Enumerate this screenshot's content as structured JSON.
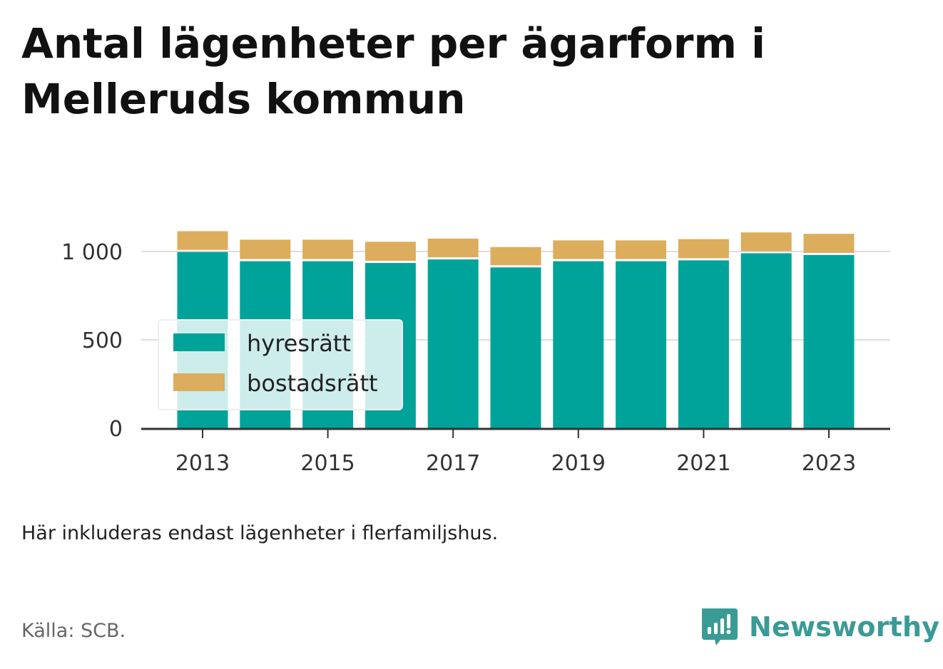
{
  "title_lines": [
    "Antal lägenheter per ägarform i",
    "Melleruds kommun"
  ],
  "note": "Här inkluderas endast lägenheter i flerfamiljshus.",
  "source": "Källa: SCB.",
  "brand": {
    "name": "Newsworthy",
    "icon": "newsworthy-logo-icon",
    "color": "#3a9b96"
  },
  "chart_data": {
    "type": "bar",
    "stacked": true,
    "categories": [
      "2013",
      "2014",
      "2015",
      "2016",
      "2017",
      "2018",
      "2019",
      "2020",
      "2021",
      "2022",
      "2023"
    ],
    "x_tick_labels": [
      "2013",
      "2015",
      "2017",
      "2019",
      "2021",
      "2023"
    ],
    "series": [
      {
        "name": "hyresrätt",
        "color": "#00a39a",
        "values": [
          997,
          945,
          945,
          935,
          955,
          910,
          945,
          945,
          950,
          990,
          980
        ]
      },
      {
        "name": "bostadsrätt",
        "color": "#dbad5c",
        "values": [
          118,
          122,
          122,
          120,
          118,
          115,
          118,
          118,
          120,
          118,
          120
        ]
      }
    ],
    "y_ticks": [
      {
        "value": 0,
        "label": "0"
      },
      {
        "value": 500,
        "label": "500"
      },
      {
        "value": 1000,
        "label": "1 000"
      }
    ],
    "ylim": [
      0,
      1250
    ],
    "grid": true,
    "legend_position": "bottom-left inside"
  }
}
